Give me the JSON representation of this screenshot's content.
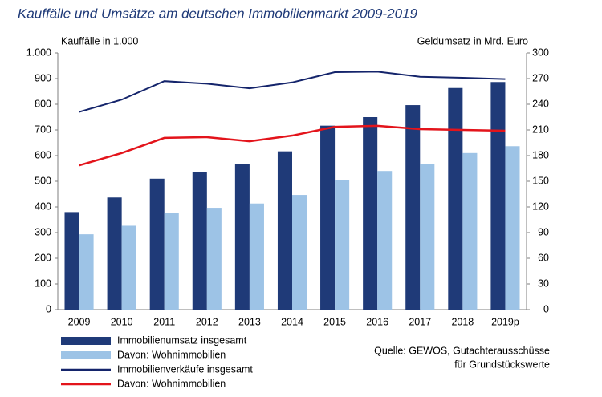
{
  "chart_data": {
    "type": "combo",
    "title": "Kauffälle und Umsätze am deutschen Immobilienmarkt 2009-2019",
    "y_label": "Kauffälle in 1.000",
    "y2_label": "Geldumsatz in Mrd. Euro",
    "source": [
      "Quelle: GEWOS, Gutachterausschüsse",
      "für Grundstückswerte"
    ],
    "categories": [
      "2009",
      "2010",
      "2011",
      "2012",
      "2013",
      "2014",
      "2015",
      "2016",
      "2017",
      "2018",
      "2019p"
    ],
    "series": [
      {
        "name": "Immobilienumsatz insgesamt",
        "type": "bar",
        "axis": "y2",
        "color": "#1f3a78",
        "values": [
          114,
          131,
          153,
          161,
          170,
          185,
          215,
          225,
          239,
          259,
          266
        ]
      },
      {
        "name": "Davon: Wohnimmobilien",
        "type": "bar",
        "axis": "y2",
        "color": "#9dc3e6",
        "values": [
          88,
          98,
          113,
          119,
          124,
          134,
          151,
          162,
          170,
          183,
          191
        ]
      },
      {
        "name": "Immobilienverkäufe insgesamt",
        "type": "line",
        "color": "#14246b",
        "values": [
          770,
          818,
          890,
          880,
          862,
          885,
          925,
          927,
          907,
          903,
          898
        ]
      },
      {
        "name": "Davon: Wohnimmobilien",
        "type": "line",
        "color": "#e3141b",
        "values": [
          562,
          610,
          669,
          672,
          656,
          678,
          712,
          716,
          703,
          700,
          697
        ]
      }
    ],
    "ylim": [
      0,
      1000
    ],
    "yticks": [
      0,
      100,
      200,
      300,
      400,
      500,
      600,
      700,
      800,
      900,
      {
        "value": 1000,
        "label": "1.000"
      }
    ],
    "y2lim": [
      0,
      300
    ],
    "y2ticks": [
      0,
      30,
      60,
      90,
      120,
      150,
      180,
      210,
      240,
      270,
      300
    ],
    "grid": false
  }
}
